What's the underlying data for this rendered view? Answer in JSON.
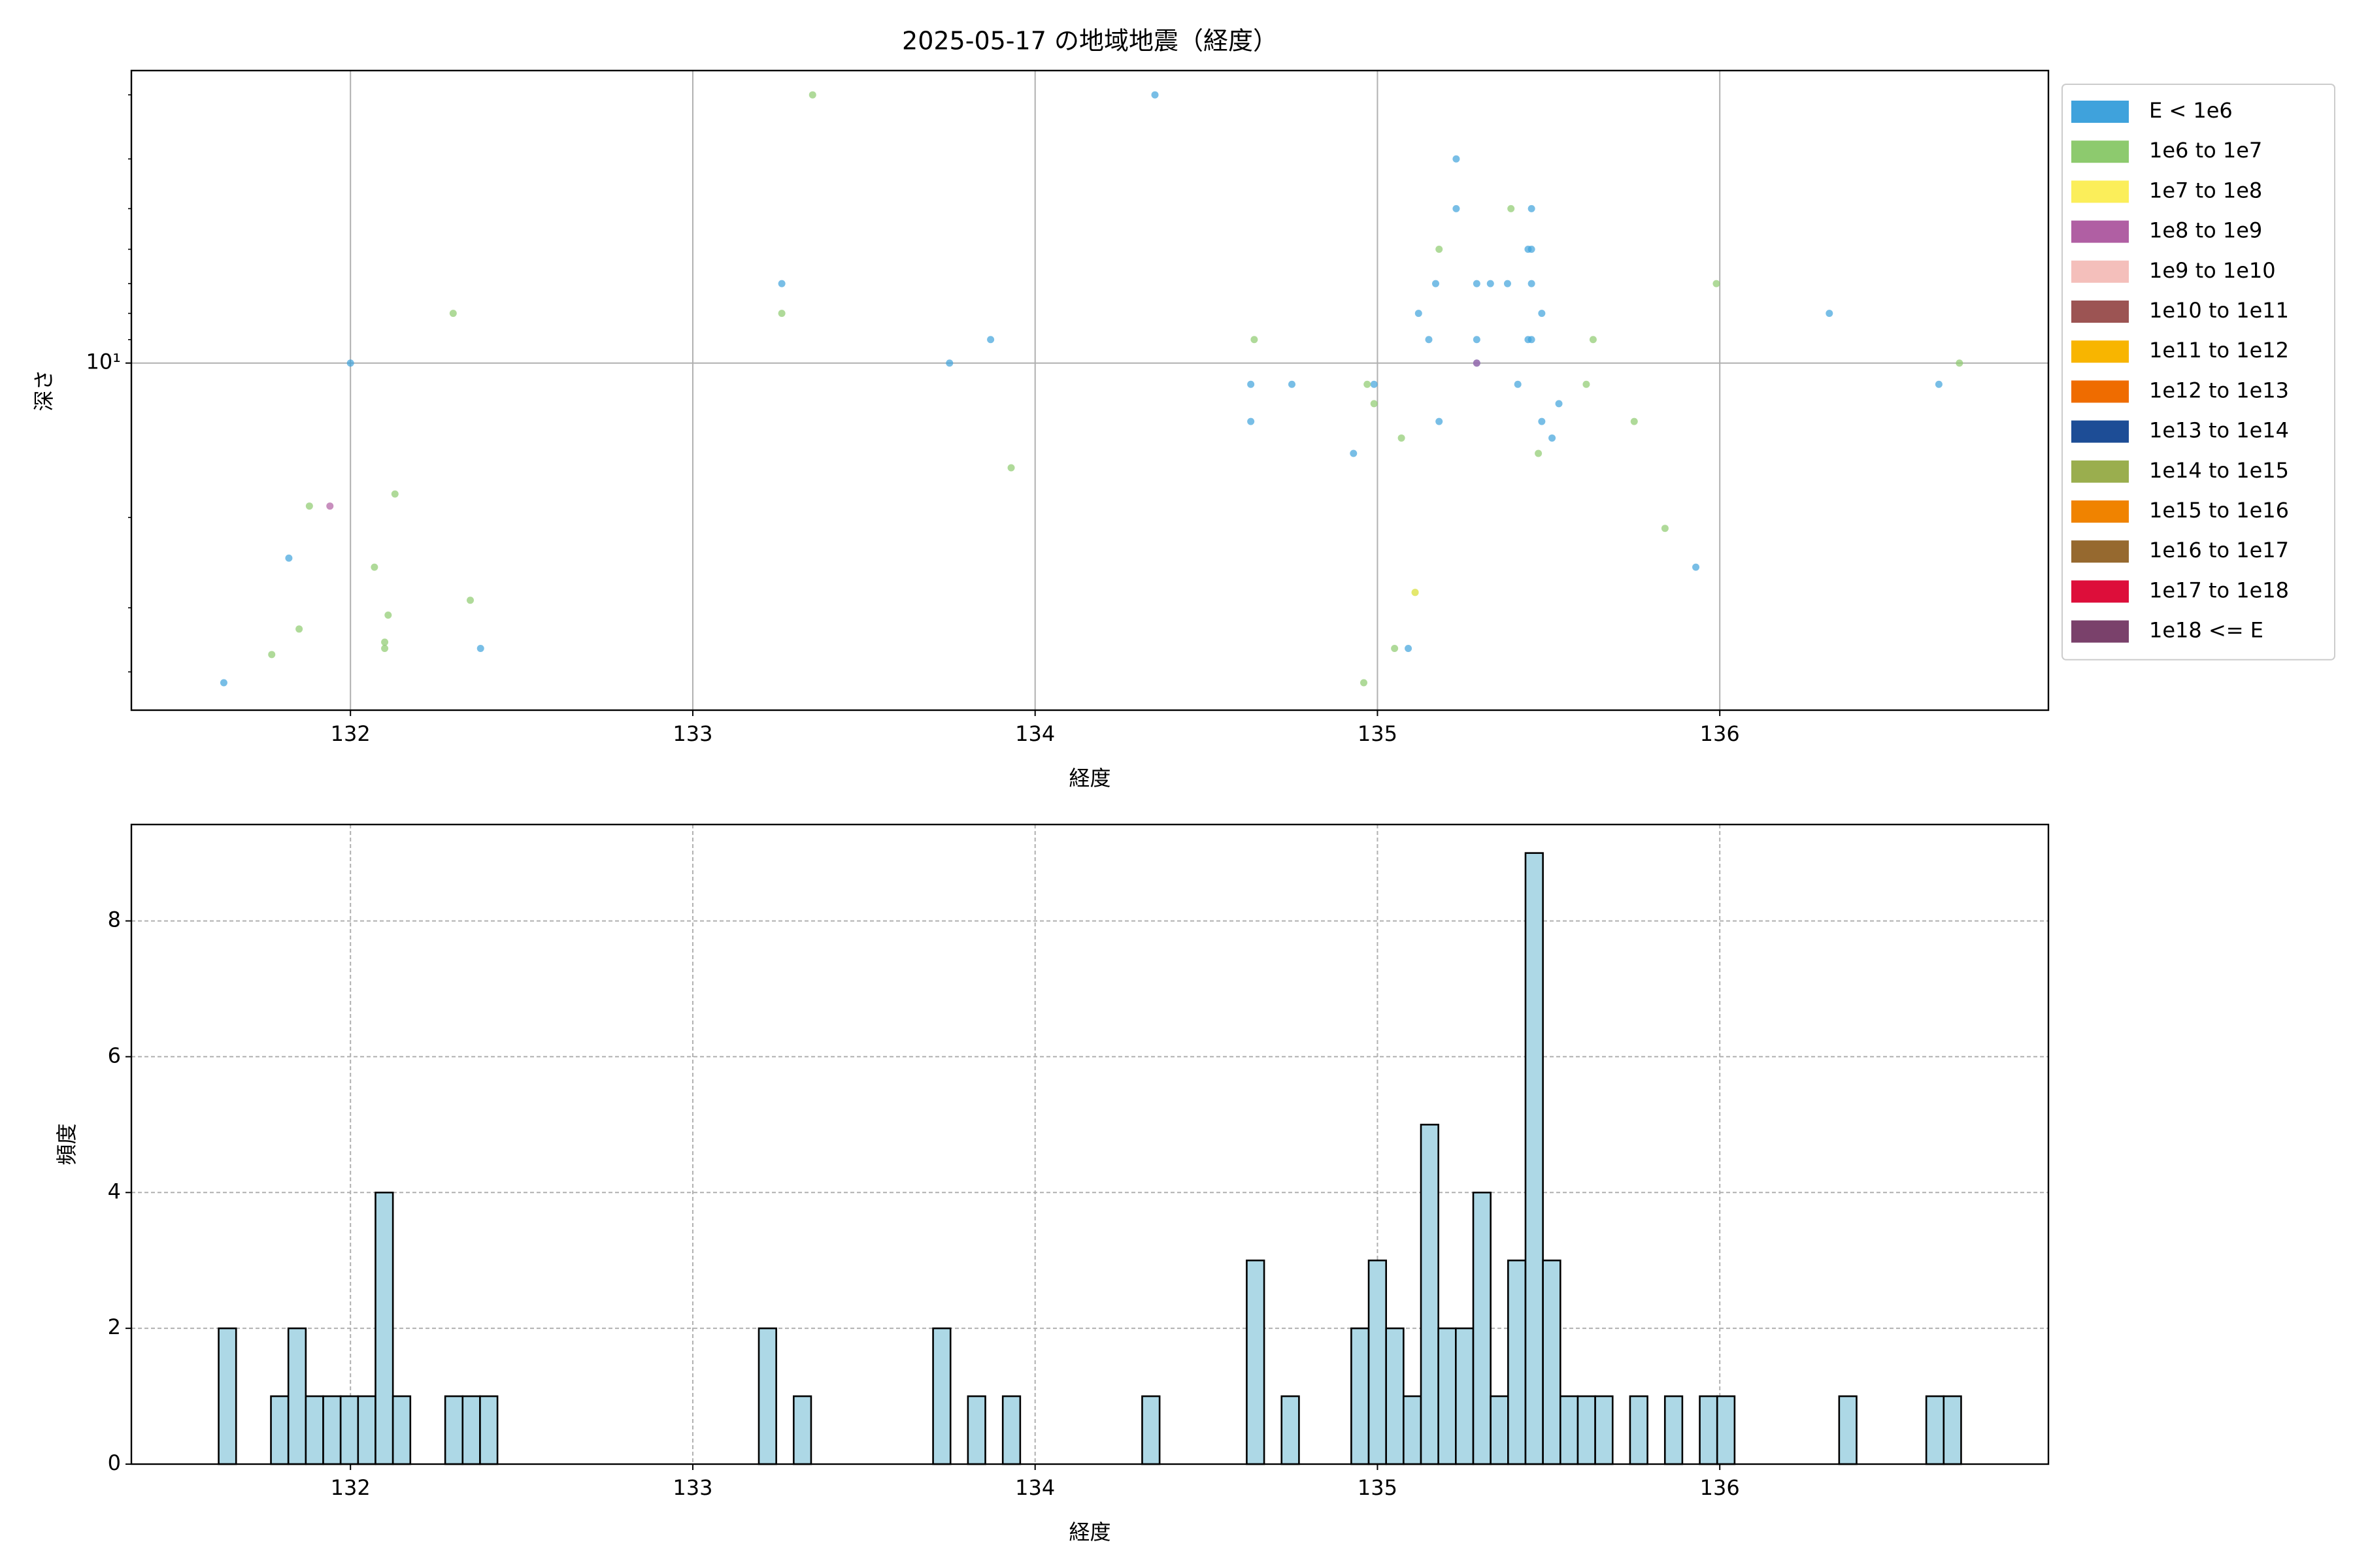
{
  "chart_data": [
    {
      "type": "scatter",
      "title": "2025-05-17 の地域地震（経度）",
      "xlabel": "経度",
      "ylabel": "深さ",
      "xlim": [
        131.36,
        136.96
      ],
      "ylim": [
        47.5,
        2.69
      ],
      "yscale": "log",
      "xticks": [
        132,
        133,
        134,
        135,
        136
      ],
      "yticks": [
        {
          "value": 10,
          "label": "10¹"
        }
      ],
      "yminorticks": [
        3,
        4,
        5,
        6,
        7,
        8,
        9,
        20,
        30,
        40
      ],
      "grid": "solid",
      "legend": "right",
      "series": [
        {
          "name": "E < 1e6",
          "color": "#3fa2dc",
          "x": [
            131.63,
            132.0,
            131.82,
            132.38,
            133.26,
            133.75,
            133.87,
            134.35,
            134.63,
            134.63,
            134.75,
            134.93,
            134.99,
            135.09,
            135.12,
            135.15,
            135.17,
            135.18,
            135.23,
            135.23,
            135.29,
            135.29,
            135.29,
            135.33,
            135.38,
            135.41,
            135.44,
            135.45,
            135.45,
            135.45,
            135.44,
            135.45,
            135.48,
            135.48,
            135.51,
            135.53,
            135.93,
            136.32,
            136.64
          ],
          "values": [
            42,
            10,
            24,
            36,
            7,
            10,
            9,
            3,
            11,
            13,
            11,
            15,
            11,
            36,
            8,
            9,
            7,
            13,
            4,
            5,
            7,
            9,
            10,
            7,
            7,
            11,
            6,
            6,
            7,
            5,
            9,
            9,
            8,
            13,
            14,
            12,
            25,
            8,
            11
          ]
        },
        {
          "name": "1e6 to 1e7",
          "color": "#8dca6e",
          "x": [
            131.77,
            131.85,
            131.88,
            132.07,
            132.1,
            132.1,
            132.11,
            132.13,
            132.3,
            132.35,
            133.26,
            133.35,
            133.93,
            134.64,
            134.96,
            134.97,
            134.99,
            135.05,
            135.07,
            135.18,
            135.39,
            135.47,
            135.61,
            135.63,
            135.75,
            135.84,
            135.99,
            136.7,
            135.11
          ],
          "values": [
            37,
            33,
            19,
            25,
            36,
            35,
            31,
            18,
            8,
            29,
            8,
            3,
            16,
            9,
            42,
            11,
            12,
            36,
            14,
            6,
            5,
            15,
            11,
            9,
            13,
            21,
            7,
            10,
            28
          ]
        },
        {
          "name": "1e7 to 1e8",
          "color": "#fbee5a",
          "x": [
            135.11
          ],
          "values": [
            28
          ]
        },
        {
          "name": "1e8 to 1e9",
          "color": "#b05fa3",
          "x": [
            131.94,
            135.29
          ],
          "values": [
            19,
            10
          ]
        },
        {
          "name": "1e9 to 1e10",
          "color": "#f4bfbb",
          "x": [],
          "values": []
        },
        {
          "name": "1e10 to 1e11",
          "color": "#9c5453",
          "x": [],
          "values": []
        },
        {
          "name": "1e11 to 1e12",
          "color": "#f8b500",
          "x": [],
          "values": []
        },
        {
          "name": "1e12 to 1e13",
          "color": "#ef6c00",
          "x": [],
          "values": []
        },
        {
          "name": "1e13 to 1e14",
          "color": "#1d4d96",
          "x": [],
          "values": []
        },
        {
          "name": "1e14 to 1e15",
          "color": "#9aae4e",
          "x": [],
          "values": []
        },
        {
          "name": "1e15 to 1e16",
          "color": "#f08300",
          "x": [],
          "values": []
        },
        {
          "name": "1e16 to 1e17",
          "color": "#96692f",
          "x": [],
          "values": []
        },
        {
          "name": "1e17 to 1e18",
          "color": "#dd0e3a",
          "x": [],
          "values": []
        },
        {
          "name": "1e18 <= E",
          "color": "#7a416b",
          "x": [],
          "values": []
        }
      ]
    },
    {
      "type": "histogram",
      "xlabel": "経度",
      "ylabel": "頻度",
      "xlim": [
        131.36,
        136.96
      ],
      "ylim": [
        0,
        9.42
      ],
      "xticks": [
        132,
        133,
        134,
        135,
        136
      ],
      "yticks": [
        0,
        2,
        4,
        6,
        8
      ],
      "grid": "dashed",
      "color": "#add8e6",
      "edgecolor": "#000000",
      "bins": [
        131.615,
        131.6659,
        131.7168,
        131.7677,
        131.8186,
        131.8695,
        131.9204,
        131.9713,
        132.0222,
        132.0731,
        132.124,
        132.1749,
        132.2258,
        132.2767,
        132.3276,
        132.3785,
        132.4294,
        132.4803,
        132.5312,
        132.5821,
        132.633,
        132.6839,
        132.7348,
        132.7857,
        132.8366,
        132.8875,
        132.9384,
        132.9893,
        133.0402,
        133.0911,
        133.142,
        133.1929,
        133.2438,
        133.2947,
        133.3456,
        133.3965,
        133.4474,
        133.4983,
        133.5492,
        133.6001,
        133.651,
        133.7019,
        133.7528,
        133.8037,
        133.8546,
        133.9055,
        133.9564,
        134.0073,
        134.0582,
        134.1091,
        134.16,
        134.2109,
        134.2618,
        134.3127,
        134.3636,
        134.4145,
        134.4654,
        134.5163,
        134.5672,
        134.6181,
        134.669,
        134.7199,
        134.7708,
        134.8217,
        134.8726,
        134.9235,
        134.9744,
        135.0253,
        135.0762,
        135.1271,
        135.178,
        135.2289,
        135.2798,
        135.3307,
        135.3816,
        135.4325,
        135.4834,
        135.5343,
        135.5852,
        135.6361,
        135.687,
        135.7379,
        135.7888,
        135.8397,
        135.8906,
        135.9415,
        135.9924,
        136.0433,
        136.0942,
        136.1451,
        136.196,
        136.2469,
        136.2978,
        136.3487,
        136.3996,
        136.4505,
        136.5014,
        136.5523,
        136.6032,
        136.6541,
        136.705
      ],
      "values": [
        2,
        0,
        0,
        1,
        2,
        1,
        1,
        1,
        1,
        4,
        1,
        0,
        0,
        1,
        1,
        1,
        0,
        0,
        0,
        0,
        0,
        0,
        0,
        0,
        0,
        0,
        0,
        0,
        0,
        0,
        0,
        2,
        0,
        1,
        0,
        0,
        0,
        0,
        0,
        0,
        0,
        2,
        0,
        1,
        0,
        1,
        0,
        0,
        0,
        0,
        0,
        0,
        0,
        1,
        0,
        0,
        0,
        0,
        0,
        3,
        0,
        1,
        0,
        0,
        0,
        2,
        3,
        2,
        1,
        5,
        2,
        2,
        4,
        1,
        3,
        9,
        3,
        1,
        1,
        1,
        0,
        1,
        0,
        1,
        0,
        1,
        1,
        0,
        0,
        0,
        0,
        0,
        0,
        1,
        0,
        0,
        0,
        0,
        1,
        1
      ]
    }
  ]
}
